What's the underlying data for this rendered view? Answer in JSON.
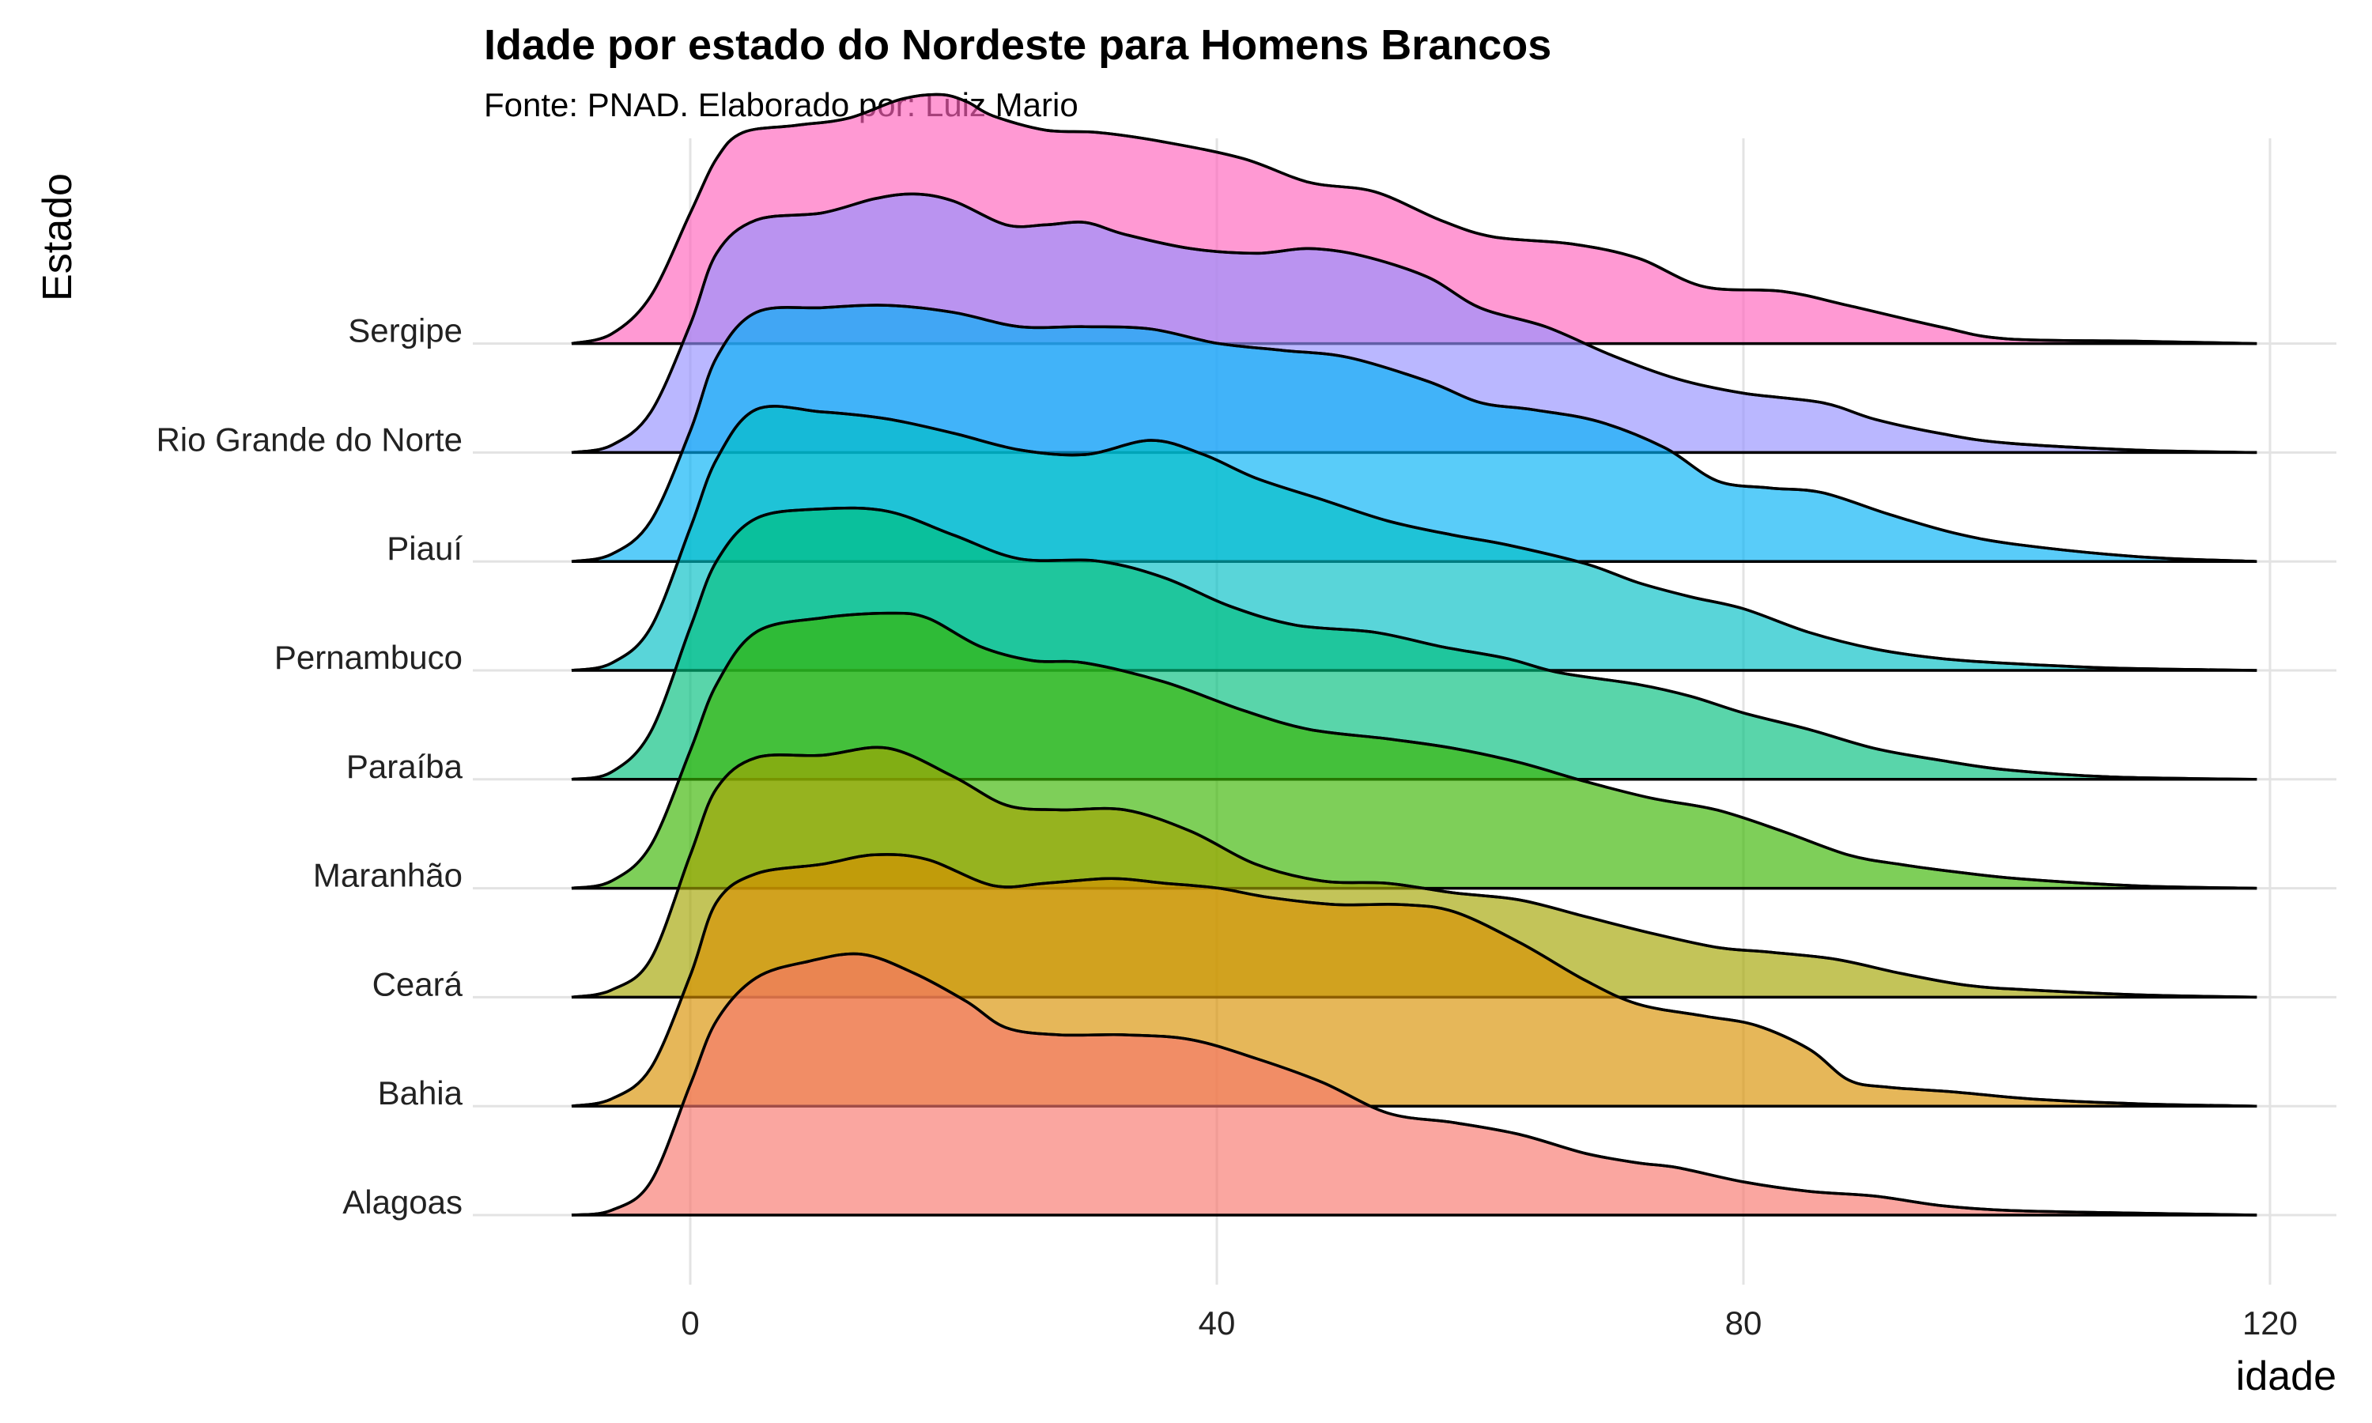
{
  "chart_data": {
    "type": "ridgeline",
    "title": "Idade por estado do Nordeste para Homens Brancos",
    "subtitle": "Fonte: PNAD. Elaborado por: Luiz Mario",
    "xlabel": "idade",
    "ylabel": "Estado",
    "xlim": [
      -18,
      123
    ],
    "x_ticks": [
      0,
      40,
      80,
      120
    ],
    "x_tick_labels": [
      "0",
      "40",
      "80",
      "120"
    ],
    "grid": true,
    "legend": "none",
    "series": [
      {
        "name": "Alagoas",
        "color": "#F8766D",
        "points": [
          [
            -9,
            0
          ],
          [
            -6,
            0.02
          ],
          [
            -3,
            0.14
          ],
          [
            0,
            0.55
          ],
          [
            2,
            0.82
          ],
          [
            5,
            1.0
          ],
          [
            9,
            1.07
          ],
          [
            13,
            1.1
          ],
          [
            17,
            1.02
          ],
          [
            21,
            0.9
          ],
          [
            24,
            0.79
          ],
          [
            28,
            0.76
          ],
          [
            33,
            0.76
          ],
          [
            38,
            0.74
          ],
          [
            43,
            0.66
          ],
          [
            48,
            0.56
          ],
          [
            53,
            0.43
          ],
          [
            58,
            0.39
          ],
          [
            63,
            0.34
          ],
          [
            68,
            0.26
          ],
          [
            72,
            0.22
          ],
          [
            75,
            0.2
          ],
          [
            80,
            0.14
          ],
          [
            85,
            0.1
          ],
          [
            90,
            0.08
          ],
          [
            95,
            0.04
          ],
          [
            100,
            0.02
          ],
          [
            108,
            0.01
          ],
          [
            119,
            0
          ]
        ]
      },
      {
        "name": "Bahia",
        "color": "#D89000",
        "points": [
          [
            -9,
            0
          ],
          [
            -6,
            0.03
          ],
          [
            -3,
            0.16
          ],
          [
            0,
            0.55
          ],
          [
            2,
            0.86
          ],
          [
            5,
            0.98
          ],
          [
            10,
            1.02
          ],
          [
            14,
            1.06
          ],
          [
            18,
            1.04
          ],
          [
            23,
            0.93
          ],
          [
            27,
            0.94
          ],
          [
            32,
            0.96
          ],
          [
            36,
            0.94
          ],
          [
            40,
            0.92
          ],
          [
            44,
            0.88
          ],
          [
            49,
            0.85
          ],
          [
            54,
            0.85
          ],
          [
            58,
            0.82
          ],
          [
            63,
            0.69
          ],
          [
            68,
            0.53
          ],
          [
            72,
            0.43
          ],
          [
            77,
            0.38
          ],
          [
            81,
            0.34
          ],
          [
            85,
            0.24
          ],
          [
            88,
            0.11
          ],
          [
            91,
            0.08
          ],
          [
            96,
            0.06
          ],
          [
            102,
            0.03
          ],
          [
            110,
            0.01
          ],
          [
            119,
            0
          ]
        ]
      },
      {
        "name": "Ceará",
        "color": "#A3A500",
        "points": [
          [
            -9,
            0
          ],
          [
            -6,
            0.03
          ],
          [
            -3,
            0.16
          ],
          [
            0,
            0.6
          ],
          [
            2,
            0.88
          ],
          [
            5,
            1.01
          ],
          [
            10,
            1.02
          ],
          [
            15,
            1.05
          ],
          [
            20,
            0.93
          ],
          [
            24,
            0.81
          ],
          [
            28,
            0.79
          ],
          [
            33,
            0.79
          ],
          [
            38,
            0.7
          ],
          [
            43,
            0.56
          ],
          [
            48,
            0.49
          ],
          [
            53,
            0.48
          ],
          [
            58,
            0.44
          ],
          [
            63,
            0.41
          ],
          [
            68,
            0.34
          ],
          [
            73,
            0.27
          ],
          [
            78,
            0.21
          ],
          [
            82,
            0.19
          ],
          [
            87,
            0.16
          ],
          [
            92,
            0.1
          ],
          [
            97,
            0.05
          ],
          [
            102,
            0.03
          ],
          [
            110,
            0.01
          ],
          [
            119,
            0
          ]
        ]
      },
      {
        "name": "Maranhão",
        "color": "#39B600",
        "points": [
          [
            -9,
            0
          ],
          [
            -6,
            0.03
          ],
          [
            -3,
            0.18
          ],
          [
            0,
            0.58
          ],
          [
            2,
            0.86
          ],
          [
            5,
            1.08
          ],
          [
            10,
            1.14
          ],
          [
            15,
            1.16
          ],
          [
            18,
            1.14
          ],
          [
            22,
            1.02
          ],
          [
            26,
            0.96
          ],
          [
            30,
            0.95
          ],
          [
            36,
            0.87
          ],
          [
            42,
            0.75
          ],
          [
            47,
            0.67
          ],
          [
            53,
            0.63
          ],
          [
            58,
            0.59
          ],
          [
            63,
            0.53
          ],
          [
            68,
            0.45
          ],
          [
            73,
            0.38
          ],
          [
            78,
            0.33
          ],
          [
            83,
            0.24
          ],
          [
            88,
            0.14
          ],
          [
            92,
            0.1
          ],
          [
            96,
            0.07
          ],
          [
            101,
            0.04
          ],
          [
            110,
            0.01
          ],
          [
            119,
            0
          ]
        ]
      },
      {
        "name": "Paraíba",
        "color": "#00BF7D",
        "points": [
          [
            -9,
            0
          ],
          [
            -6,
            0.03
          ],
          [
            -3,
            0.2
          ],
          [
            0,
            0.64
          ],
          [
            2,
            0.92
          ],
          [
            5,
            1.1
          ],
          [
            10,
            1.14
          ],
          [
            15,
            1.13
          ],
          [
            20,
            1.03
          ],
          [
            25,
            0.93
          ],
          [
            31,
            0.92
          ],
          [
            36,
            0.85
          ],
          [
            41,
            0.73
          ],
          [
            46,
            0.65
          ],
          [
            52,
            0.62
          ],
          [
            57,
            0.56
          ],
          [
            62,
            0.51
          ],
          [
            66,
            0.45
          ],
          [
            72,
            0.4
          ],
          [
            76,
            0.35
          ],
          [
            80,
            0.28
          ],
          [
            85,
            0.21
          ],
          [
            90,
            0.13
          ],
          [
            95,
            0.08
          ],
          [
            100,
            0.04
          ],
          [
            108,
            0.01
          ],
          [
            119,
            0
          ]
        ]
      },
      {
        "name": "Pernambuco",
        "color": "#00BFC4",
        "points": [
          [
            -9,
            0
          ],
          [
            -6,
            0.03
          ],
          [
            -3,
            0.18
          ],
          [
            0,
            0.6
          ],
          [
            2,
            0.89
          ],
          [
            5,
            1.1
          ],
          [
            10,
            1.09
          ],
          [
            15,
            1.06
          ],
          [
            20,
            1.0
          ],
          [
            25,
            0.93
          ],
          [
            30,
            0.91
          ],
          [
            35,
            0.97
          ],
          [
            39,
            0.91
          ],
          [
            43,
            0.81
          ],
          [
            48,
            0.72
          ],
          [
            53,
            0.63
          ],
          [
            58,
            0.57
          ],
          [
            62,
            0.53
          ],
          [
            68,
            0.45
          ],
          [
            72,
            0.37
          ],
          [
            76,
            0.31
          ],
          [
            80,
            0.26
          ],
          [
            85,
            0.16
          ],
          [
            90,
            0.09
          ],
          [
            95,
            0.05
          ],
          [
            100,
            0.03
          ],
          [
            108,
            0.01
          ],
          [
            119,
            0
          ]
        ]
      },
      {
        "name": "Piauí",
        "color": "#00B0F6",
        "points": [
          [
            -9,
            0
          ],
          [
            -6,
            0.03
          ],
          [
            -3,
            0.17
          ],
          [
            0,
            0.55
          ],
          [
            2,
            0.86
          ],
          [
            5,
            1.05
          ],
          [
            10,
            1.07
          ],
          [
            15,
            1.08
          ],
          [
            20,
            1.05
          ],
          [
            25,
            0.99
          ],
          [
            30,
            0.99
          ],
          [
            35,
            0.98
          ],
          [
            40,
            0.92
          ],
          [
            45,
            0.89
          ],
          [
            50,
            0.86
          ],
          [
            56,
            0.76
          ],
          [
            60,
            0.67
          ],
          [
            64,
            0.64
          ],
          [
            69,
            0.59
          ],
          [
            74,
            0.48
          ],
          [
            78,
            0.34
          ],
          [
            82,
            0.31
          ],
          [
            86,
            0.29
          ],
          [
            91,
            0.2
          ],
          [
            96,
            0.12
          ],
          [
            101,
            0.07
          ],
          [
            110,
            0.02
          ],
          [
            119,
            0
          ]
        ]
      },
      {
        "name": "Rio Grande do Norte",
        "color": "#9590FF",
        "points": [
          [
            -9,
            0
          ],
          [
            -6,
            0.03
          ],
          [
            -3,
            0.17
          ],
          [
            0,
            0.54
          ],
          [
            2,
            0.84
          ],
          [
            5,
            0.98
          ],
          [
            10,
            1.01
          ],
          [
            14,
            1.07
          ],
          [
            17,
            1.09
          ],
          [
            20,
            1.06
          ],
          [
            24,
            0.96
          ],
          [
            27,
            0.96
          ],
          [
            30,
            0.97
          ],
          [
            33,
            0.92
          ],
          [
            38,
            0.86
          ],
          [
            43,
            0.84
          ],
          [
            47,
            0.86
          ],
          [
            51,
            0.83
          ],
          [
            56,
            0.74
          ],
          [
            60,
            0.61
          ],
          [
            65,
            0.53
          ],
          [
            70,
            0.41
          ],
          [
            75,
            0.31
          ],
          [
            80,
            0.25
          ],
          [
            86,
            0.21
          ],
          [
            90,
            0.14
          ],
          [
            95,
            0.08
          ],
          [
            100,
            0.04
          ],
          [
            110,
            0.01
          ],
          [
            119,
            0
          ]
        ]
      },
      {
        "name": "Sergipe",
        "color": "#FF62BC",
        "points": [
          [
            -9,
            0
          ],
          [
            -6,
            0.04
          ],
          [
            -3,
            0.2
          ],
          [
            0,
            0.55
          ],
          [
            2,
            0.78
          ],
          [
            4,
            0.89
          ],
          [
            8,
            0.92
          ],
          [
            12,
            0.95
          ],
          [
            16,
            1.03
          ],
          [
            19,
            1.05
          ],
          [
            21,
            1.02
          ],
          [
            23,
            0.96
          ],
          [
            27,
            0.9
          ],
          [
            31,
            0.89
          ],
          [
            36,
            0.85
          ],
          [
            42,
            0.78
          ],
          [
            47,
            0.68
          ],
          [
            52,
            0.64
          ],
          [
            57,
            0.52
          ],
          [
            61,
            0.45
          ],
          [
            67,
            0.42
          ],
          [
            72,
            0.36
          ],
          [
            77,
            0.24
          ],
          [
            83,
            0.22
          ],
          [
            88,
            0.16
          ],
          [
            95,
            0.07
          ],
          [
            100,
            0.02
          ],
          [
            110,
            0.01
          ],
          [
            119,
            0
          ]
        ]
      }
    ]
  }
}
